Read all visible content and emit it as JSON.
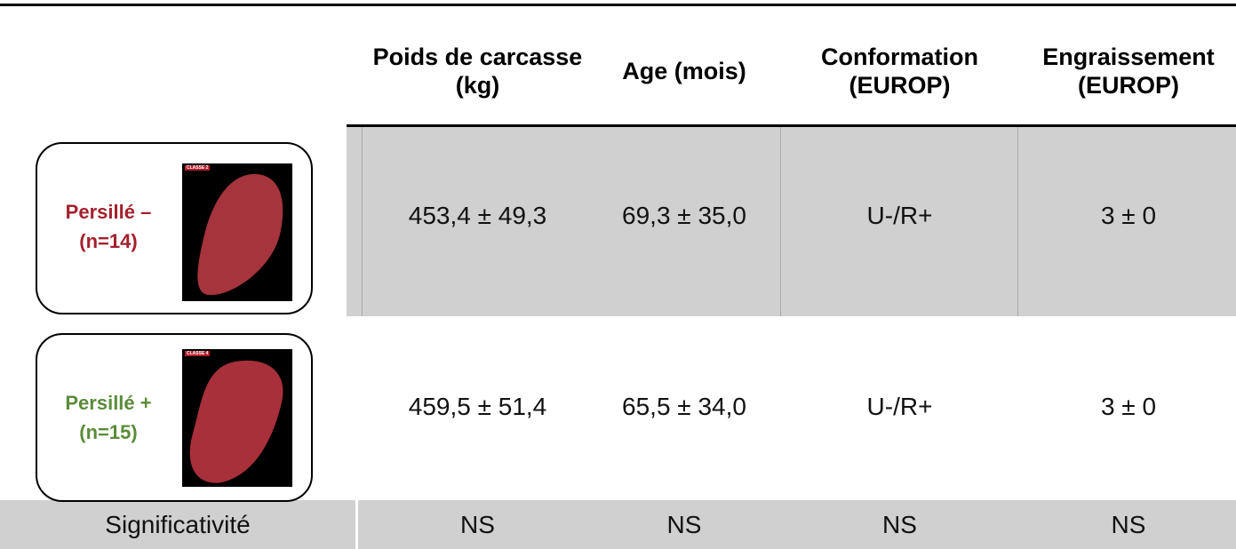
{
  "table": {
    "columns": [
      "Poids de carcasse (kg)",
      "Age (mois)",
      "Conformation (EUROP)",
      "Engraissement (EUROP)"
    ],
    "rows": [
      {
        "label": "Persillé –",
        "n": "(n=14)",
        "image_label": "CLASSE 2",
        "cells": [
          "453,4 ± 49,3",
          "69,3 ± 35,0",
          "U-/R+",
          "3 ± 0"
        ]
      },
      {
        "label": "Persillé +",
        "n": "(n=15)",
        "image_label": "CLASSE 4",
        "cells": [
          "459,5 ± 51,4",
          "65,5 ± 34,0",
          "U-/R+",
          "3 ± 0"
        ]
      }
    ],
    "footer": {
      "label": "Significativité",
      "cells": [
        "NS",
        "NS",
        "NS",
        "NS"
      ]
    }
  }
}
